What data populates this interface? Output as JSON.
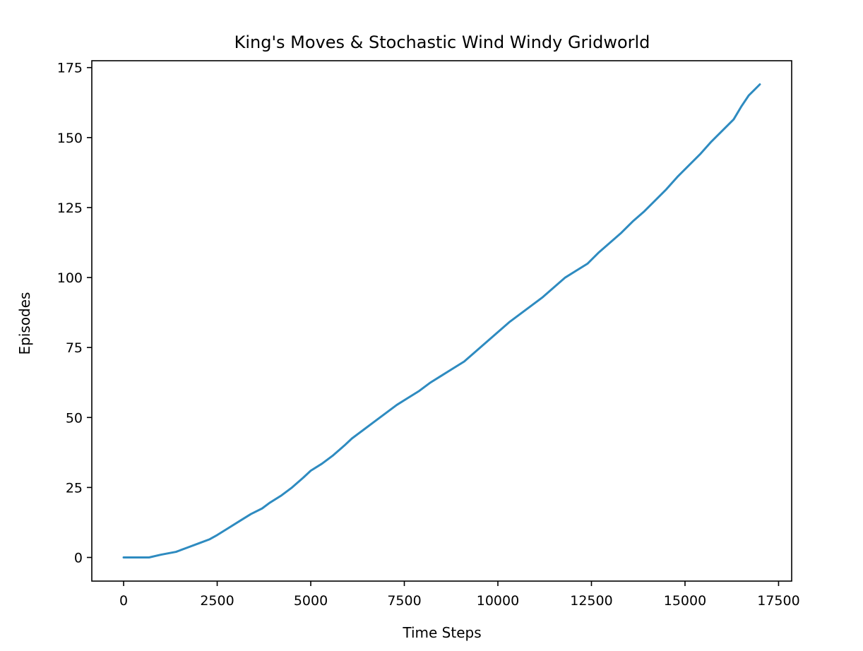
{
  "chart_data": {
    "type": "line",
    "title": "King's Moves & Stochastic Wind Windy Gridworld",
    "xlabel": "Time Steps",
    "ylabel": "Episodes",
    "xlim": [
      -850,
      17850
    ],
    "ylim": [
      -8.45,
      177.45
    ],
    "xticks": [
      0,
      2500,
      5000,
      7500,
      10000,
      12500,
      15000,
      17500
    ],
    "yticks": [
      0,
      25,
      50,
      75,
      100,
      125,
      150,
      175
    ],
    "xtick_labels": [
      "0",
      "2500",
      "5000",
      "7500",
      "10000",
      "12500",
      "15000",
      "17500"
    ],
    "ytick_labels": [
      "0",
      "25",
      "50",
      "75",
      "100",
      "125",
      "150",
      "175"
    ],
    "grid": false,
    "series": [
      {
        "color": "#2e8bc0",
        "x": [
          0,
          680,
          1000,
          1400,
          1700,
          2000,
          2300,
          2500,
          2800,
          3100,
          3400,
          3700,
          3900,
          4200,
          4500,
          4800,
          5000,
          5300,
          5600,
          5900,
          6100,
          6400,
          6700,
          7000,
          7300,
          7600,
          7900,
          8200,
          8500,
          8800,
          9100,
          9400,
          9700,
          10000,
          10300,
          10600,
          10900,
          11200,
          11500,
          11800,
          12100,
          12400,
          12700,
          13000,
          13300,
          13600,
          13900,
          14200,
          14500,
          14800,
          15100,
          15400,
          15700,
          16000,
          16300,
          16500,
          16700,
          17000
        ],
        "y": [
          0,
          0,
          1,
          2,
          3.5,
          5,
          6.5,
          8,
          10.5,
          13,
          15.5,
          17.5,
          19.5,
          22,
          25,
          28.5,
          31,
          33.5,
          36.5,
          40,
          42.5,
          45.5,
          48.5,
          51.5,
          54.5,
          57,
          59.5,
          62.5,
          65,
          67.5,
          70,
          73.5,
          77,
          80.5,
          84,
          87,
          90,
          93,
          96.5,
          100,
          102.5,
          105,
          109,
          112.5,
          116,
          120,
          123.5,
          127.5,
          131.5,
          136,
          140,
          144,
          148.5,
          152.5,
          156.5,
          161,
          165,
          169
        ]
      }
    ]
  }
}
